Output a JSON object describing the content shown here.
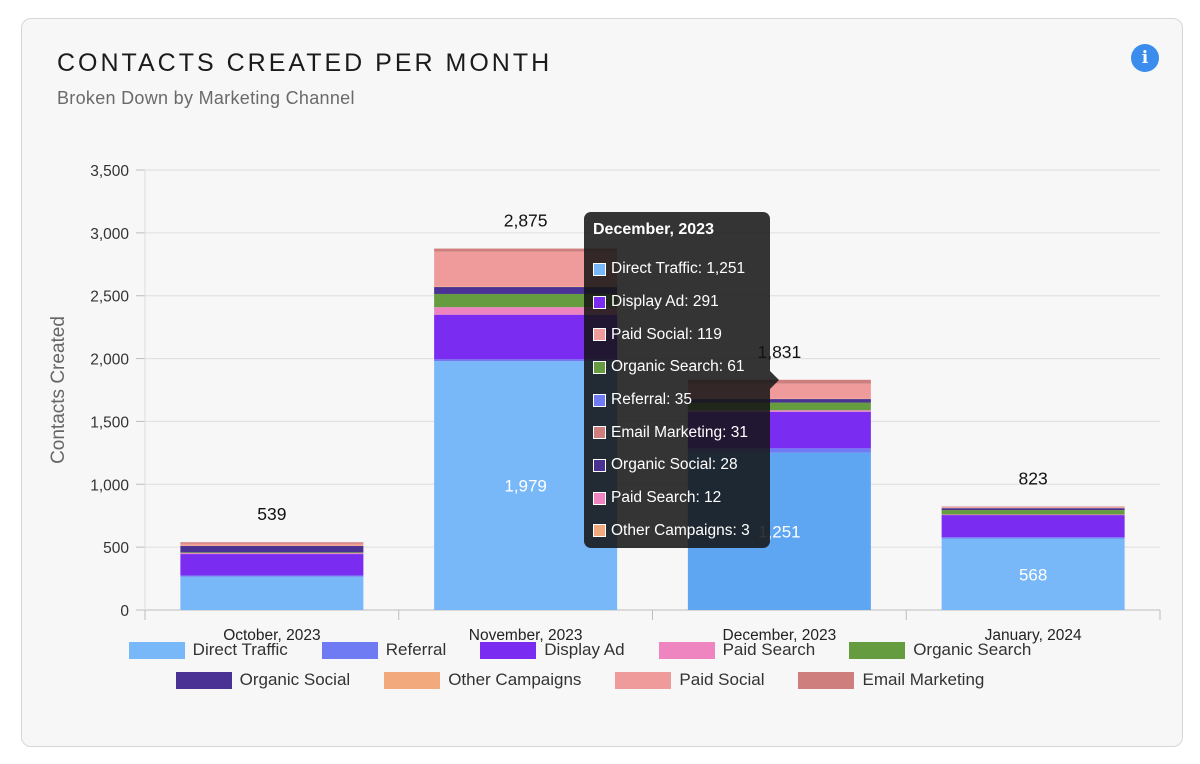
{
  "header": {
    "title": "CONTACTS CREATED PER MONTH",
    "subtitle": "Broken Down by Marketing Channel",
    "info_icon": "info-icon"
  },
  "colors": {
    "Direct Traffic": "#78b8f8",
    "Direct Traffic Highlight": "#5ea6f2",
    "Referral": "#6f7bf3",
    "Display Ad": "#7a2df0",
    "Paid Search": "#ee84c0",
    "Organic Search": "#659c3f",
    "Organic Social": "#4a3294",
    "Other Campaigns": "#f2a97b",
    "Paid Social": "#ef9b9b",
    "Email Marketing": "#cf7e7e"
  },
  "chart_data": {
    "type": "bar",
    "stacked": true,
    "title": "CONTACTS CREATED PER MONTH",
    "subtitle": "Broken Down by Marketing Channel",
    "xlabel": "",
    "ylabel": "Contacts Created",
    "ylim": [
      0,
      3500
    ],
    "yticks": [
      0,
      500,
      1000,
      1500,
      2000,
      2500,
      3000,
      3500
    ],
    "ytick_labels": [
      "0",
      "500",
      "1,000",
      "1,500",
      "2,000",
      "2,500",
      "3,000",
      "3,500"
    ],
    "grid": true,
    "categories": [
      "October, 2023",
      "November, 2023",
      "December, 2023",
      "January, 2024"
    ],
    "totals": [
      539,
      2875,
      1831,
      823
    ],
    "total_labels": [
      "539",
      "2,875",
      "1,831",
      "823"
    ],
    "series": [
      {
        "name": "Direct Traffic",
        "values": [
          265,
          1979,
          1251,
          568
        ],
        "labels": [
          "",
          "1,979",
          "1,251",
          "568"
        ]
      },
      {
        "name": "Referral",
        "values": [
          10,
          15,
          35,
          12
        ]
      },
      {
        "name": "Display Ad",
        "values": [
          170,
          355,
          291,
          175
        ]
      },
      {
        "name": "Paid Search",
        "values": [
          8,
          60,
          12,
          5
        ]
      },
      {
        "name": "Organic Search",
        "values": [
          6,
          105,
          61,
          35
        ]
      },
      {
        "name": "Organic Social",
        "values": [
          50,
          55,
          28,
          15
        ]
      },
      {
        "name": "Other Campaigns",
        "values": [
          5,
          6,
          3,
          2
        ]
      },
      {
        "name": "Paid Social",
        "values": [
          15,
          275,
          119,
          6
        ]
      },
      {
        "name": "Email Marketing",
        "values": [
          10,
          25,
          31,
          5
        ]
      }
    ],
    "highlighted_category": "December, 2023",
    "legend_position": "bottom"
  },
  "legend": [
    "Direct Traffic",
    "Referral",
    "Display Ad",
    "Paid Search",
    "Organic Search",
    "Organic Social",
    "Other Campaigns",
    "Paid Social",
    "Email Marketing"
  ],
  "tooltip": {
    "title": "December, 2023",
    "rows": [
      {
        "series": "Direct Traffic",
        "text": "Direct Traffic: 1,251"
      },
      {
        "series": "Display Ad",
        "text": "Display Ad: 291"
      },
      {
        "series": "Paid Social",
        "text": "Paid Social: 119"
      },
      {
        "series": "Organic Search",
        "text": "Organic Search: 61"
      },
      {
        "series": "Referral",
        "text": "Referral: 35"
      },
      {
        "series": "Email Marketing",
        "text": "Email Marketing: 31"
      },
      {
        "series": "Organic Social",
        "text": "Organic Social: 28"
      },
      {
        "series": "Paid Search",
        "text": "Paid Search: 12"
      },
      {
        "series": "Other Campaigns",
        "text": "Other Campaigns: 3"
      }
    ]
  }
}
